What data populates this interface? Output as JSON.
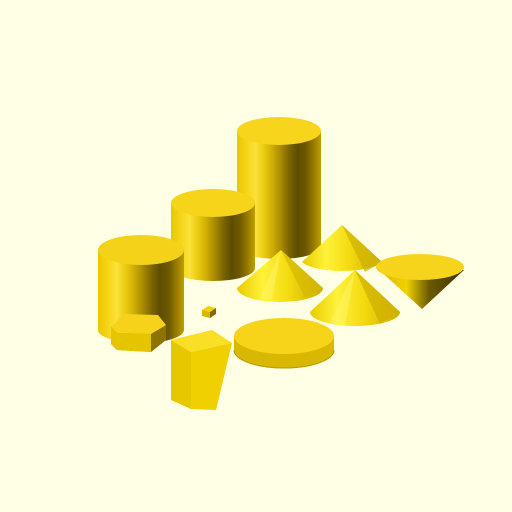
{
  "viewport": {
    "background_color": "#FFFFE5",
    "shape_color": "#F8D400"
  },
  "scene": {
    "objects": [
      "tall-cylinder",
      "medium-cylinder",
      "short-cylinder",
      "hexagonal-prism",
      "tiny-cube",
      "triangular-prism",
      "flat-disc",
      "cone-left",
      "cone-back",
      "cone-front",
      "inverted-cone"
    ]
  }
}
